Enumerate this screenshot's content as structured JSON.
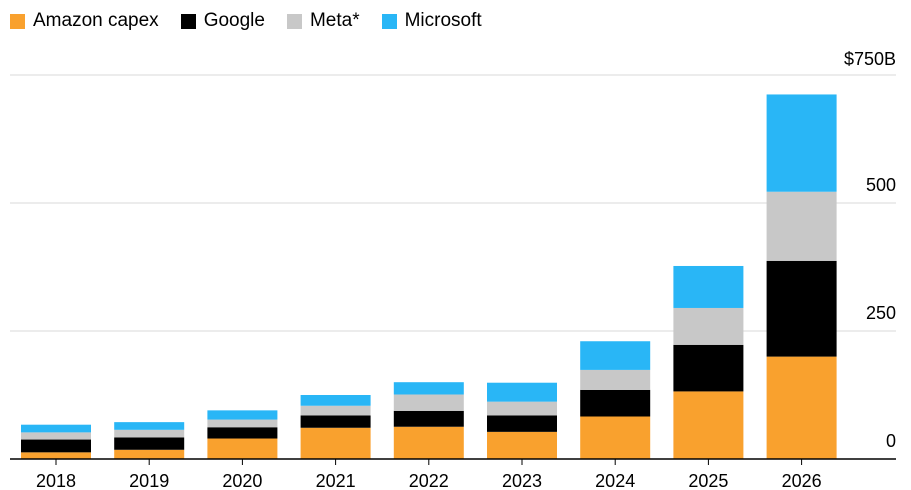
{
  "chart_data": {
    "type": "bar",
    "stacked": true,
    "categories": [
      "2018",
      "2019",
      "2020",
      "2021",
      "2022",
      "2023",
      "2024",
      "2025",
      "2026"
    ],
    "series": [
      {
        "name": "Amazon capex",
        "color": "#f9a12e",
        "values": [
          13,
          18,
          40,
          61,
          63,
          53,
          83,
          132,
          200
        ]
      },
      {
        "name": "Google",
        "color": "#000000",
        "values": [
          25,
          24,
          22,
          24,
          31,
          32,
          52,
          91,
          187
        ]
      },
      {
        "name": "Meta*",
        "color": "#c8c8c8",
        "values": [
          14,
          15,
          15,
          19,
          32,
          27,
          39,
          72,
          135
        ]
      },
      {
        "name": "Microsoft",
        "color": "#29b6f6",
        "values": [
          15,
          15,
          18,
          21,
          24,
          37,
          56,
          82,
          190
        ]
      }
    ],
    "y_ticks": [
      {
        "value": 0,
        "label": "0"
      },
      {
        "value": 250,
        "label": "250"
      },
      {
        "value": 500,
        "label": "500"
      },
      {
        "value": 750,
        "label": "$750B"
      }
    ],
    "ylim": [
      0,
      750
    ],
    "grid": true,
    "legend_position": "top-left",
    "y_axis_side": "right"
  }
}
